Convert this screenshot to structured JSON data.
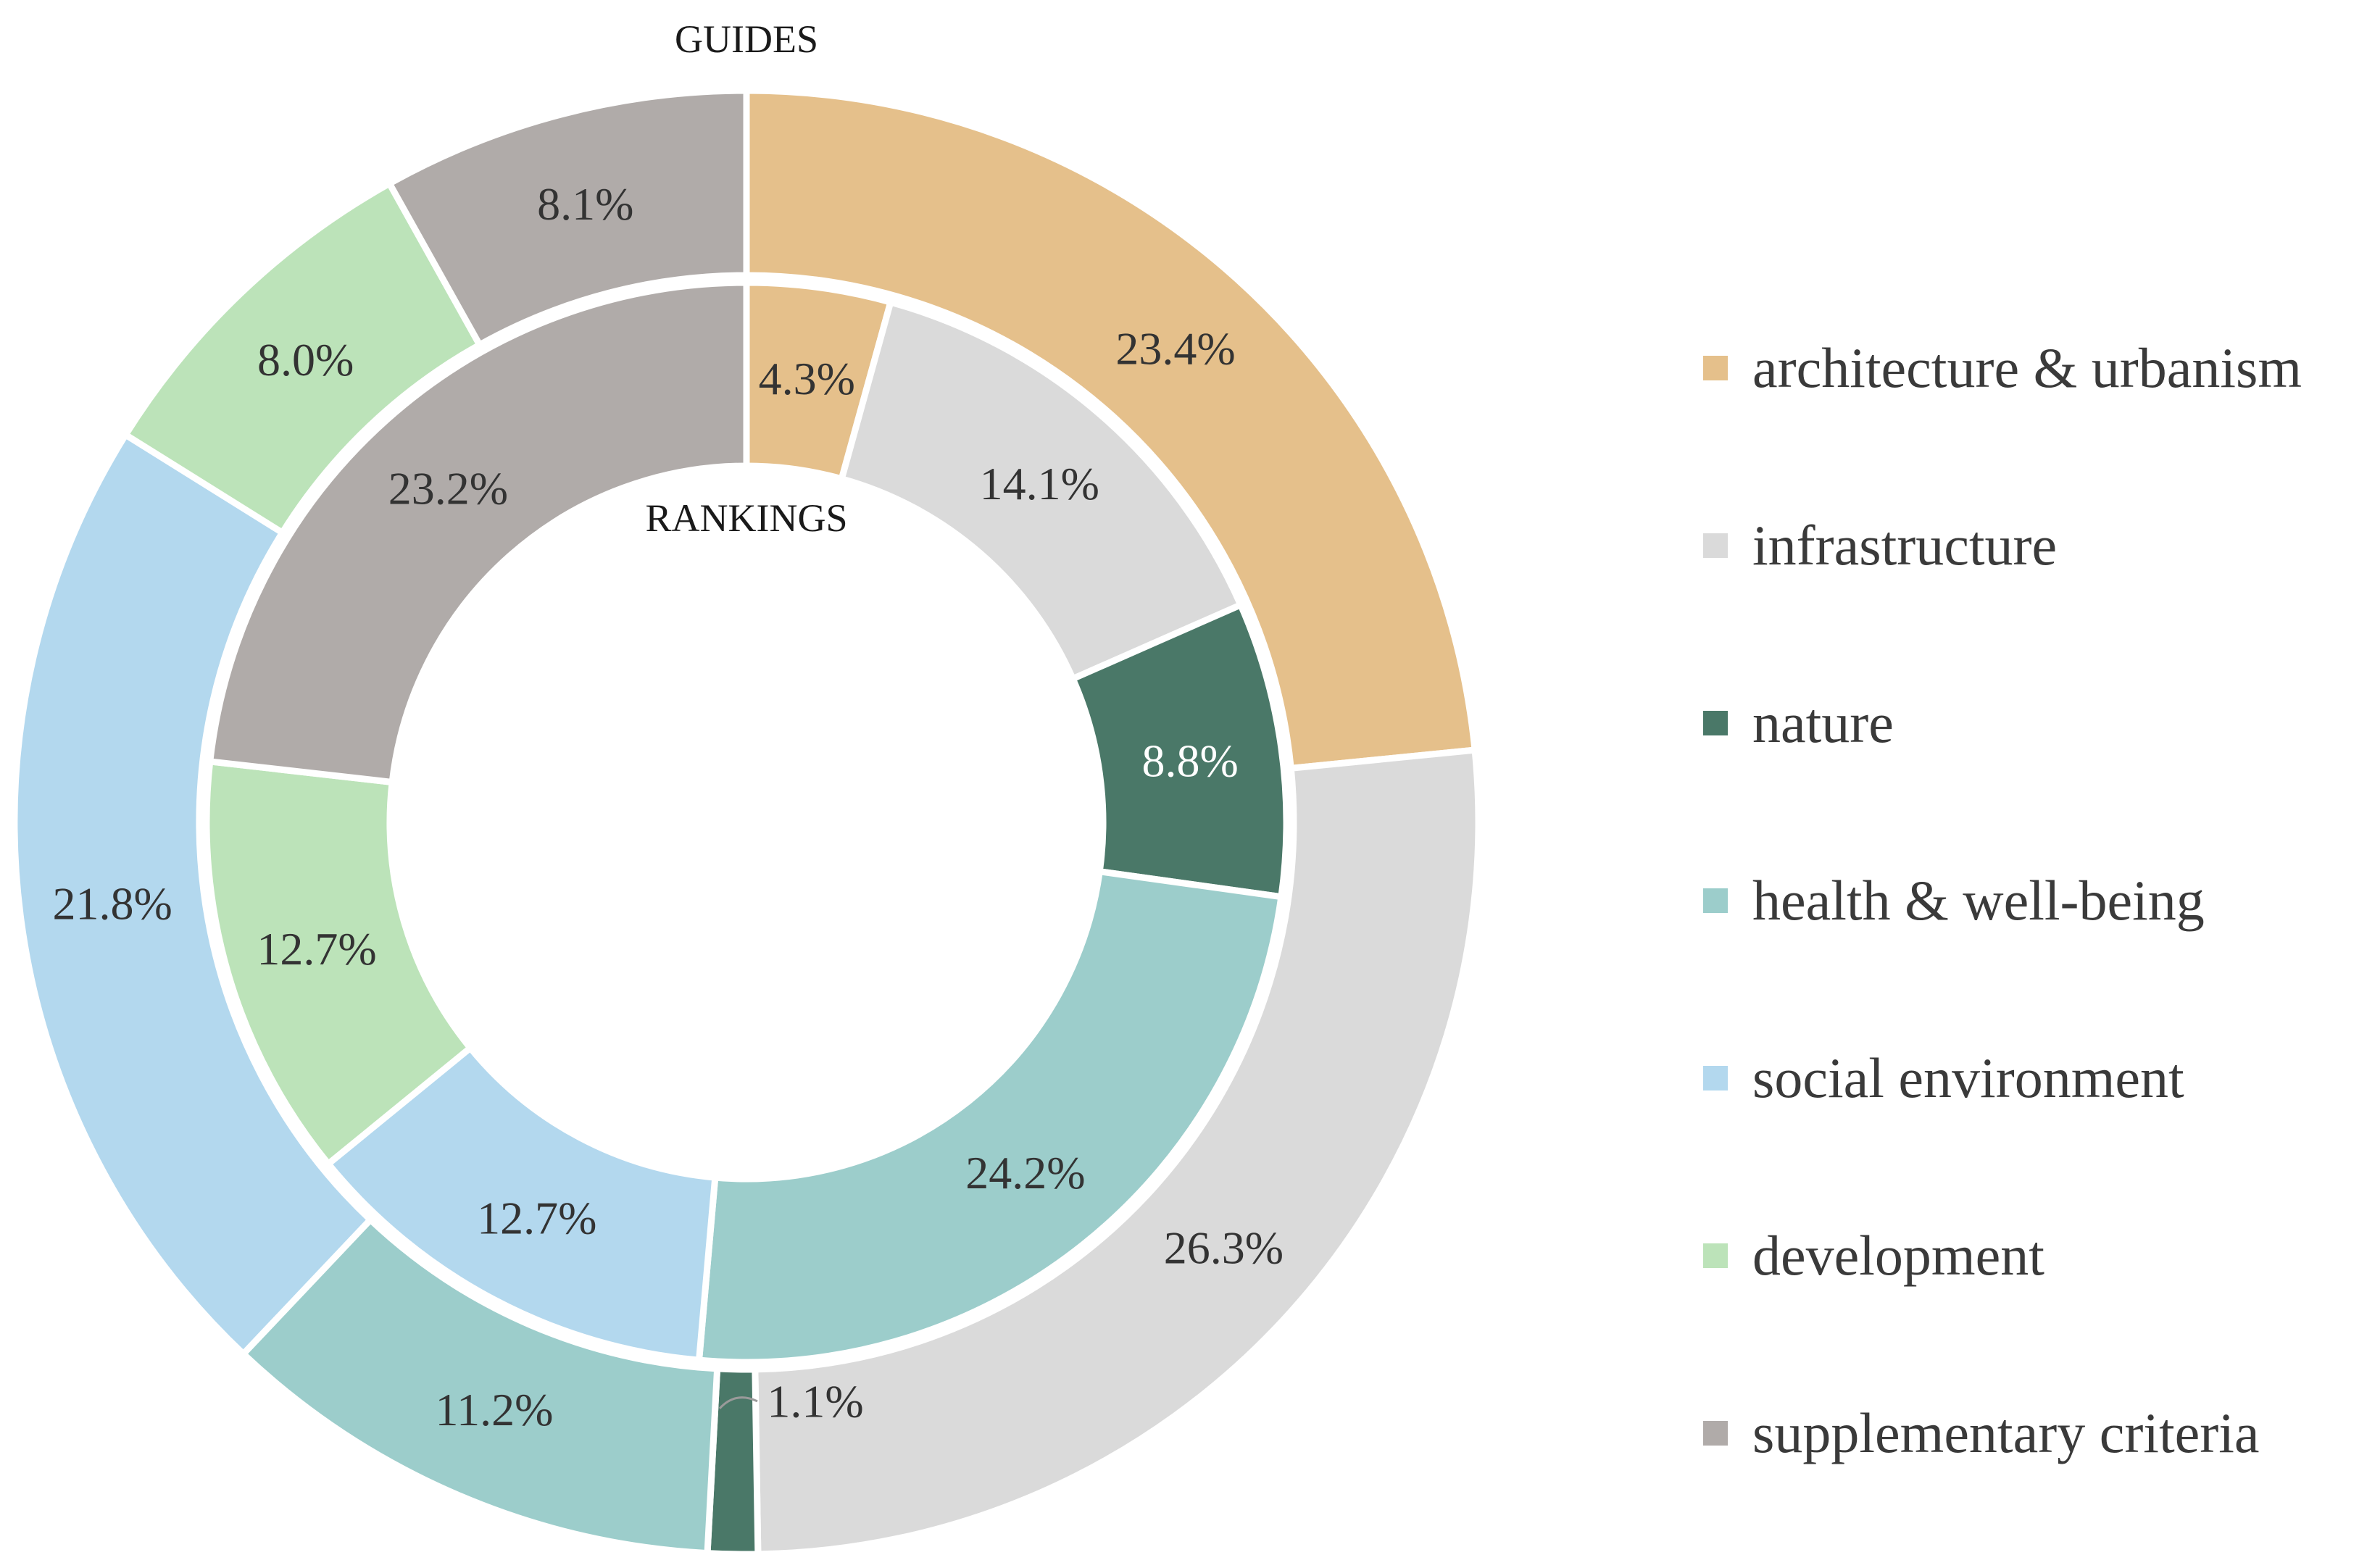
{
  "chart_data": {
    "type": "donut",
    "categories": [
      "architecture & urbanism",
      "infrastructure",
      "nature",
      "health & well-being",
      "social environment",
      "development",
      "supplementary criteria"
    ],
    "colors": [
      "#e5c08b",
      "#dadada",
      "#4a7868",
      "#9ccdcb",
      "#b3d8ee",
      "#bce3b9",
      "#b0aba9"
    ],
    "series": [
      {
        "name": "RANKINGS",
        "ring": "inner",
        "values": [
          4.3,
          14.1,
          8.8,
          24.2,
          12.7,
          12.7,
          23.2
        ],
        "labels": [
          "4.3%",
          "14.1%",
          "8.8%",
          "24.2%",
          "12.7%",
          "12.7%",
          "23.2%"
        ]
      },
      {
        "name": "GUIDES",
        "ring": "outer",
        "values": [
          23.4,
          26.3,
          1.1,
          11.2,
          21.8,
          8.0,
          8.1
        ],
        "labels": [
          "23.4%",
          "26.3%",
          "1.1%",
          "11.2%",
          "21.8%",
          "8.0%",
          "8.1%"
        ]
      }
    ],
    "legend_position": "right"
  }
}
